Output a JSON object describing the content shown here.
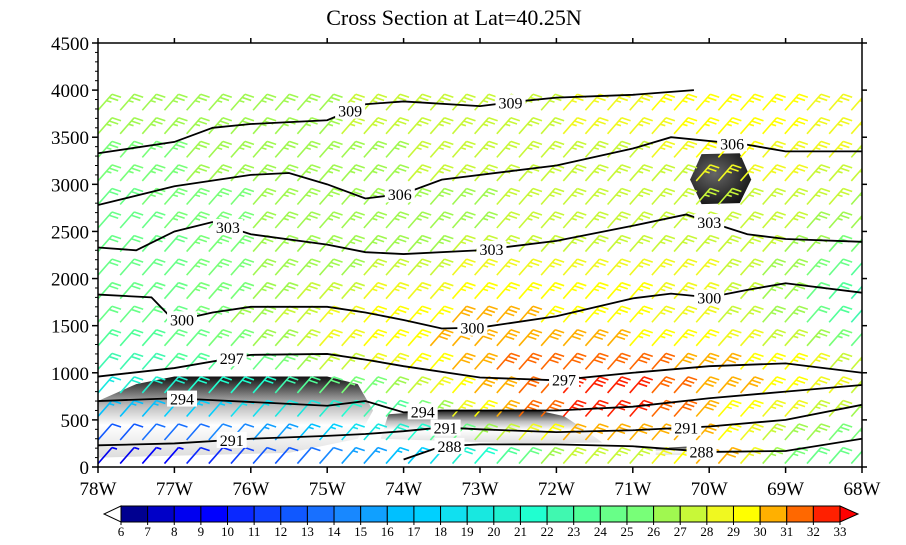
{
  "chart_data": {
    "type": "heatmap",
    "title": "Cross Section at Lat=40.25N",
    "xlabel": "",
    "ylabel": "",
    "xlim": [
      78,
      68
    ],
    "ylim": [
      0,
      4500
    ],
    "x_ticks": [
      78,
      77,
      76,
      75,
      74,
      73,
      72,
      71,
      70,
      69,
      68
    ],
    "x_tick_labels": [
      "78W",
      "77W",
      "76W",
      "75W",
      "74W",
      "73W",
      "72W",
      "71W",
      "70W",
      "69W",
      "68W"
    ],
    "y_ticks": [
      0,
      500,
      1000,
      1500,
      2000,
      2500,
      3000,
      3500,
      4000,
      4500
    ],
    "y_tick_labels": [
      "0",
      "500",
      "1000",
      "1500",
      "2000",
      "2500",
      "3000",
      "3500",
      "4000",
      "4500"
    ],
    "wind_speed_field": {
      "lons": [
        78,
        77,
        76,
        75,
        74,
        73,
        72,
        71,
        70,
        69,
        68
      ],
      "heights": [
        100,
        500,
        1000,
        1500,
        2000,
        2500,
        3000,
        3500,
        4000
      ],
      "speeds": [
        [
          8,
          10,
          12,
          15,
          17,
          22,
          27,
          28,
          31,
          25,
          24
        ],
        [
          15,
          16,
          17,
          19,
          24,
          30,
          32,
          32,
          30,
          28,
          26
        ],
        [
          22,
          23,
          24,
          27,
          29,
          31,
          32,
          32,
          31,
          30,
          28
        ],
        [
          24,
          25,
          27,
          29,
          30,
          31,
          30,
          29,
          28,
          26,
          22
        ],
        [
          25,
          25,
          26,
          27,
          28,
          29,
          29,
          29,
          28,
          26,
          22
        ],
        [
          24,
          25,
          26,
          26,
          26,
          27,
          27,
          27,
          28,
          27,
          26
        ],
        [
          25,
          26,
          26,
          26,
          27,
          27,
          27,
          27,
          28,
          28,
          27
        ],
        [
          26,
          26,
          26,
          27,
          27,
          27,
          28,
          28,
          30,
          29,
          28
        ],
        [
          27,
          27,
          27,
          27,
          28,
          28,
          28,
          29,
          30,
          29,
          28
        ]
      ]
    },
    "isentropes": [
      {
        "value": "309",
        "points": [
          [
            78,
            3330
          ],
          [
            77,
            3450
          ],
          [
            76.5,
            3600
          ],
          [
            76,
            3640
          ],
          [
            75,
            3680
          ],
          [
            74.5,
            3850
          ],
          [
            74,
            3880
          ],
          [
            73,
            3830
          ],
          [
            72.5,
            3880
          ],
          [
            72,
            3920
          ],
          [
            71,
            3950
          ],
          [
            70.2,
            4000
          ]
        ],
        "label_lons": [
          74.7,
          72.6
        ]
      },
      {
        "value": "306",
        "points": [
          [
            78,
            2780
          ],
          [
            77,
            2980
          ],
          [
            76,
            3100
          ],
          [
            75.5,
            3120
          ],
          [
            75,
            3000
          ],
          [
            74.5,
            2850
          ],
          [
            74,
            2900
          ],
          [
            73.5,
            3050
          ],
          [
            72,
            3200
          ],
          [
            71,
            3380
          ],
          [
            70.5,
            3500
          ],
          [
            69.5,
            3420
          ],
          [
            69,
            3350
          ],
          [
            68,
            3350
          ]
        ],
        "label_lons": [
          74.05,
          69.7
        ]
      },
      {
        "value": "303",
        "points": [
          [
            78,
            2330
          ],
          [
            77.5,
            2300
          ],
          [
            77,
            2500
          ],
          [
            76.5,
            2600
          ],
          [
            76,
            2470
          ],
          [
            75,
            2360
          ],
          [
            74.5,
            2280
          ],
          [
            74,
            2260
          ],
          [
            73,
            2300
          ],
          [
            72,
            2400
          ],
          [
            71,
            2560
          ],
          [
            70.3,
            2680
          ],
          [
            70,
            2600
          ],
          [
            69.5,
            2470
          ],
          [
            69,
            2420
          ],
          [
            68,
            2390
          ]
        ],
        "label_lons": [
          76.3,
          72.85,
          70.0
        ]
      },
      {
        "value": "300",
        "points": [
          [
            78,
            1830
          ],
          [
            77.3,
            1800
          ],
          [
            77,
            1550
          ],
          [
            76.5,
            1640
          ],
          [
            76,
            1700
          ],
          [
            75,
            1700
          ],
          [
            74.5,
            1640
          ],
          [
            74,
            1560
          ],
          [
            73.5,
            1470
          ],
          [
            73,
            1480
          ],
          [
            72,
            1600
          ],
          [
            71,
            1790
          ],
          [
            70.5,
            1840
          ],
          [
            70,
            1800
          ],
          [
            69.5,
            1880
          ],
          [
            69,
            1950
          ],
          [
            68,
            1850
          ]
        ],
        "label_lons": [
          76.9,
          73.1,
          70.0
        ]
      },
      {
        "value": "297",
        "points": [
          [
            78,
            960
          ],
          [
            77,
            1050
          ],
          [
            76,
            1190
          ],
          [
            75,
            1200
          ],
          [
            74.5,
            1140
          ],
          [
            74,
            1070
          ],
          [
            73,
            950
          ],
          [
            72,
            920
          ],
          [
            71,
            1000
          ],
          [
            70,
            1070
          ],
          [
            69,
            1100
          ],
          [
            68,
            1000
          ]
        ],
        "label_lons": [
          76.25,
          71.9
        ]
      },
      {
        "value": "294",
        "points": [
          [
            78,
            700
          ],
          [
            77,
            730
          ],
          [
            76.5,
            710
          ],
          [
            75,
            650
          ],
          [
            74.5,
            700
          ],
          [
            74,
            580
          ],
          [
            73.5,
            600
          ],
          [
            73,
            600
          ],
          [
            72,
            600
          ],
          [
            71,
            640
          ],
          [
            70,
            730
          ],
          [
            69,
            800
          ],
          [
            68,
            870
          ]
        ],
        "label_lons": [
          76.9,
          73.75
        ]
      },
      {
        "value": "291",
        "points": [
          [
            78,
            230
          ],
          [
            77,
            250
          ],
          [
            76,
            300
          ],
          [
            75,
            330
          ],
          [
            74.5,
            350
          ],
          [
            74,
            380
          ],
          [
            73.5,
            420
          ],
          [
            73,
            400
          ],
          [
            72,
            370
          ],
          [
            71,
            390
          ],
          [
            70,
            430
          ],
          [
            69,
            500
          ],
          [
            68,
            660
          ]
        ],
        "label_lons": [
          76.25,
          73.45,
          70.3
        ]
      },
      {
        "value": "288",
        "points": [
          [
            74,
            80
          ],
          [
            73.5,
            220
          ],
          [
            73,
            240
          ],
          [
            72,
            240
          ],
          [
            71,
            220
          ],
          [
            70,
            160
          ],
          [
            69,
            170
          ],
          [
            68,
            300
          ]
        ],
        "label_lons": [
          73.4,
          70.1
        ]
      }
    ],
    "colorbar": {
      "labels": [
        "6",
        "7",
        "8",
        "9",
        "10",
        "11",
        "12",
        "13",
        "14",
        "15",
        "16",
        "17",
        "18",
        "19",
        "20",
        "21",
        "22",
        "23",
        "24",
        "25",
        "26",
        "27",
        "28",
        "29",
        "30",
        "31",
        "32",
        "33"
      ],
      "colors": [
        "#000090",
        "#0000c8",
        "#0000f0",
        "#0000ff",
        "#0a28ff",
        "#1040ff",
        "#1058ff",
        "#1870ff",
        "#1888ff",
        "#10a0ff",
        "#00c0ff",
        "#00d0ff",
        "#10e0f0",
        "#18e8e0",
        "#20f0d0",
        "#20ffd0",
        "#40f8b0",
        "#50ff98",
        "#68ff88",
        "#78ff78",
        "#a0f850",
        "#c8f838",
        "#f0f820",
        "#ffff00",
        "#ffb000",
        "#ff6800",
        "#ff2000"
      ],
      "under_color": "#ffffff",
      "over_color": "#ff0000"
    }
  }
}
